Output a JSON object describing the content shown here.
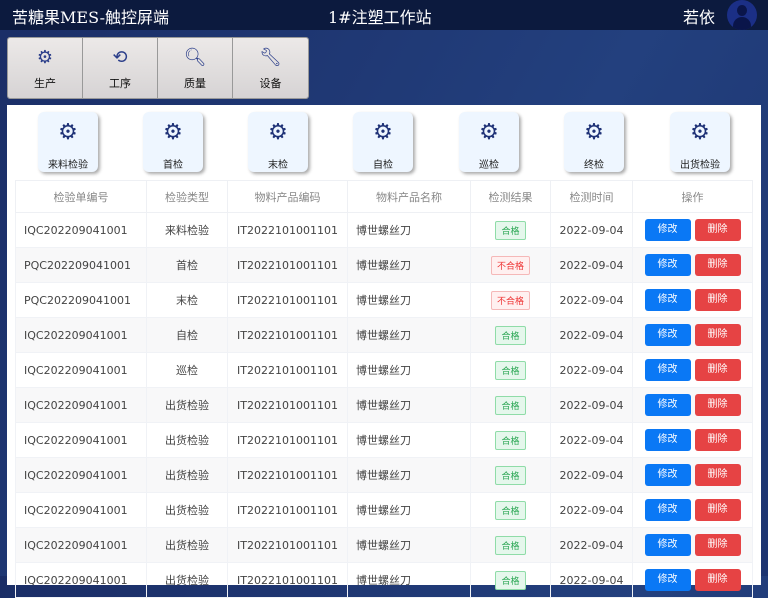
{
  "header": {
    "app_title": "苦糖果MES-触控屏端",
    "station": "1#注塑工作站",
    "user": "若依"
  },
  "nav": [
    {
      "label": "生产",
      "icon": "gears-icon"
    },
    {
      "label": "工序",
      "icon": "process-icon"
    },
    {
      "label": "质量",
      "icon": "quality-search-icon"
    },
    {
      "label": "设备",
      "icon": "equipment-icon"
    }
  ],
  "inspection_types": [
    "来料检验",
    "首检",
    "末检",
    "自检",
    "巡检",
    "终检",
    "出货检验"
  ],
  "table": {
    "columns": [
      "检验单编号",
      "检验类型",
      "物料产品编码",
      "物料产品名称",
      "检测结果",
      "检测时间",
      "操作"
    ],
    "edit_label": "修改",
    "delete_label": "删除",
    "rows": [
      {
        "id": "IQC202209041001",
        "type": "来料检验",
        "code": "IT2022101001101",
        "name": "博世螺丝刀",
        "result": "合格",
        "pass": true,
        "date": "2022-09-04"
      },
      {
        "id": "PQC202209041001",
        "type": "首检",
        "code": "IT2022101001101",
        "name": "博世螺丝刀",
        "result": "不合格",
        "pass": false,
        "date": "2022-09-04"
      },
      {
        "id": "PQC202209041001",
        "type": "末检",
        "code": "IT2022101001101",
        "name": "博世螺丝刀",
        "result": "不合格",
        "pass": false,
        "date": "2022-09-04"
      },
      {
        "id": "IQC202209041001",
        "type": "自检",
        "code": "IT2022101001101",
        "name": "博世螺丝刀",
        "result": "合格",
        "pass": true,
        "date": "2022-09-04"
      },
      {
        "id": "IQC202209041001",
        "type": "巡检",
        "code": "IT2022101001101",
        "name": "博世螺丝刀",
        "result": "合格",
        "pass": true,
        "date": "2022-09-04"
      },
      {
        "id": "IQC202209041001",
        "type": "出货检验",
        "code": "IT2022101001101",
        "name": "博世螺丝刀",
        "result": "合格",
        "pass": true,
        "date": "2022-09-04"
      },
      {
        "id": "IQC202209041001",
        "type": "出货检验",
        "code": "IT2022101001101",
        "name": "博世螺丝刀",
        "result": "合格",
        "pass": true,
        "date": "2022-09-04"
      },
      {
        "id": "IQC202209041001",
        "type": "出货检验",
        "code": "IT2022101001101",
        "name": "博世螺丝刀",
        "result": "合格",
        "pass": true,
        "date": "2022-09-04"
      },
      {
        "id": "IQC202209041001",
        "type": "出货检验",
        "code": "IT2022101001101",
        "name": "博世螺丝刀",
        "result": "合格",
        "pass": true,
        "date": "2022-09-04"
      },
      {
        "id": "IQC202209041001",
        "type": "出货检验",
        "code": "IT2022101001101",
        "name": "博世螺丝刀",
        "result": "合格",
        "pass": true,
        "date": "2022-09-04"
      }
    ]
  }
}
